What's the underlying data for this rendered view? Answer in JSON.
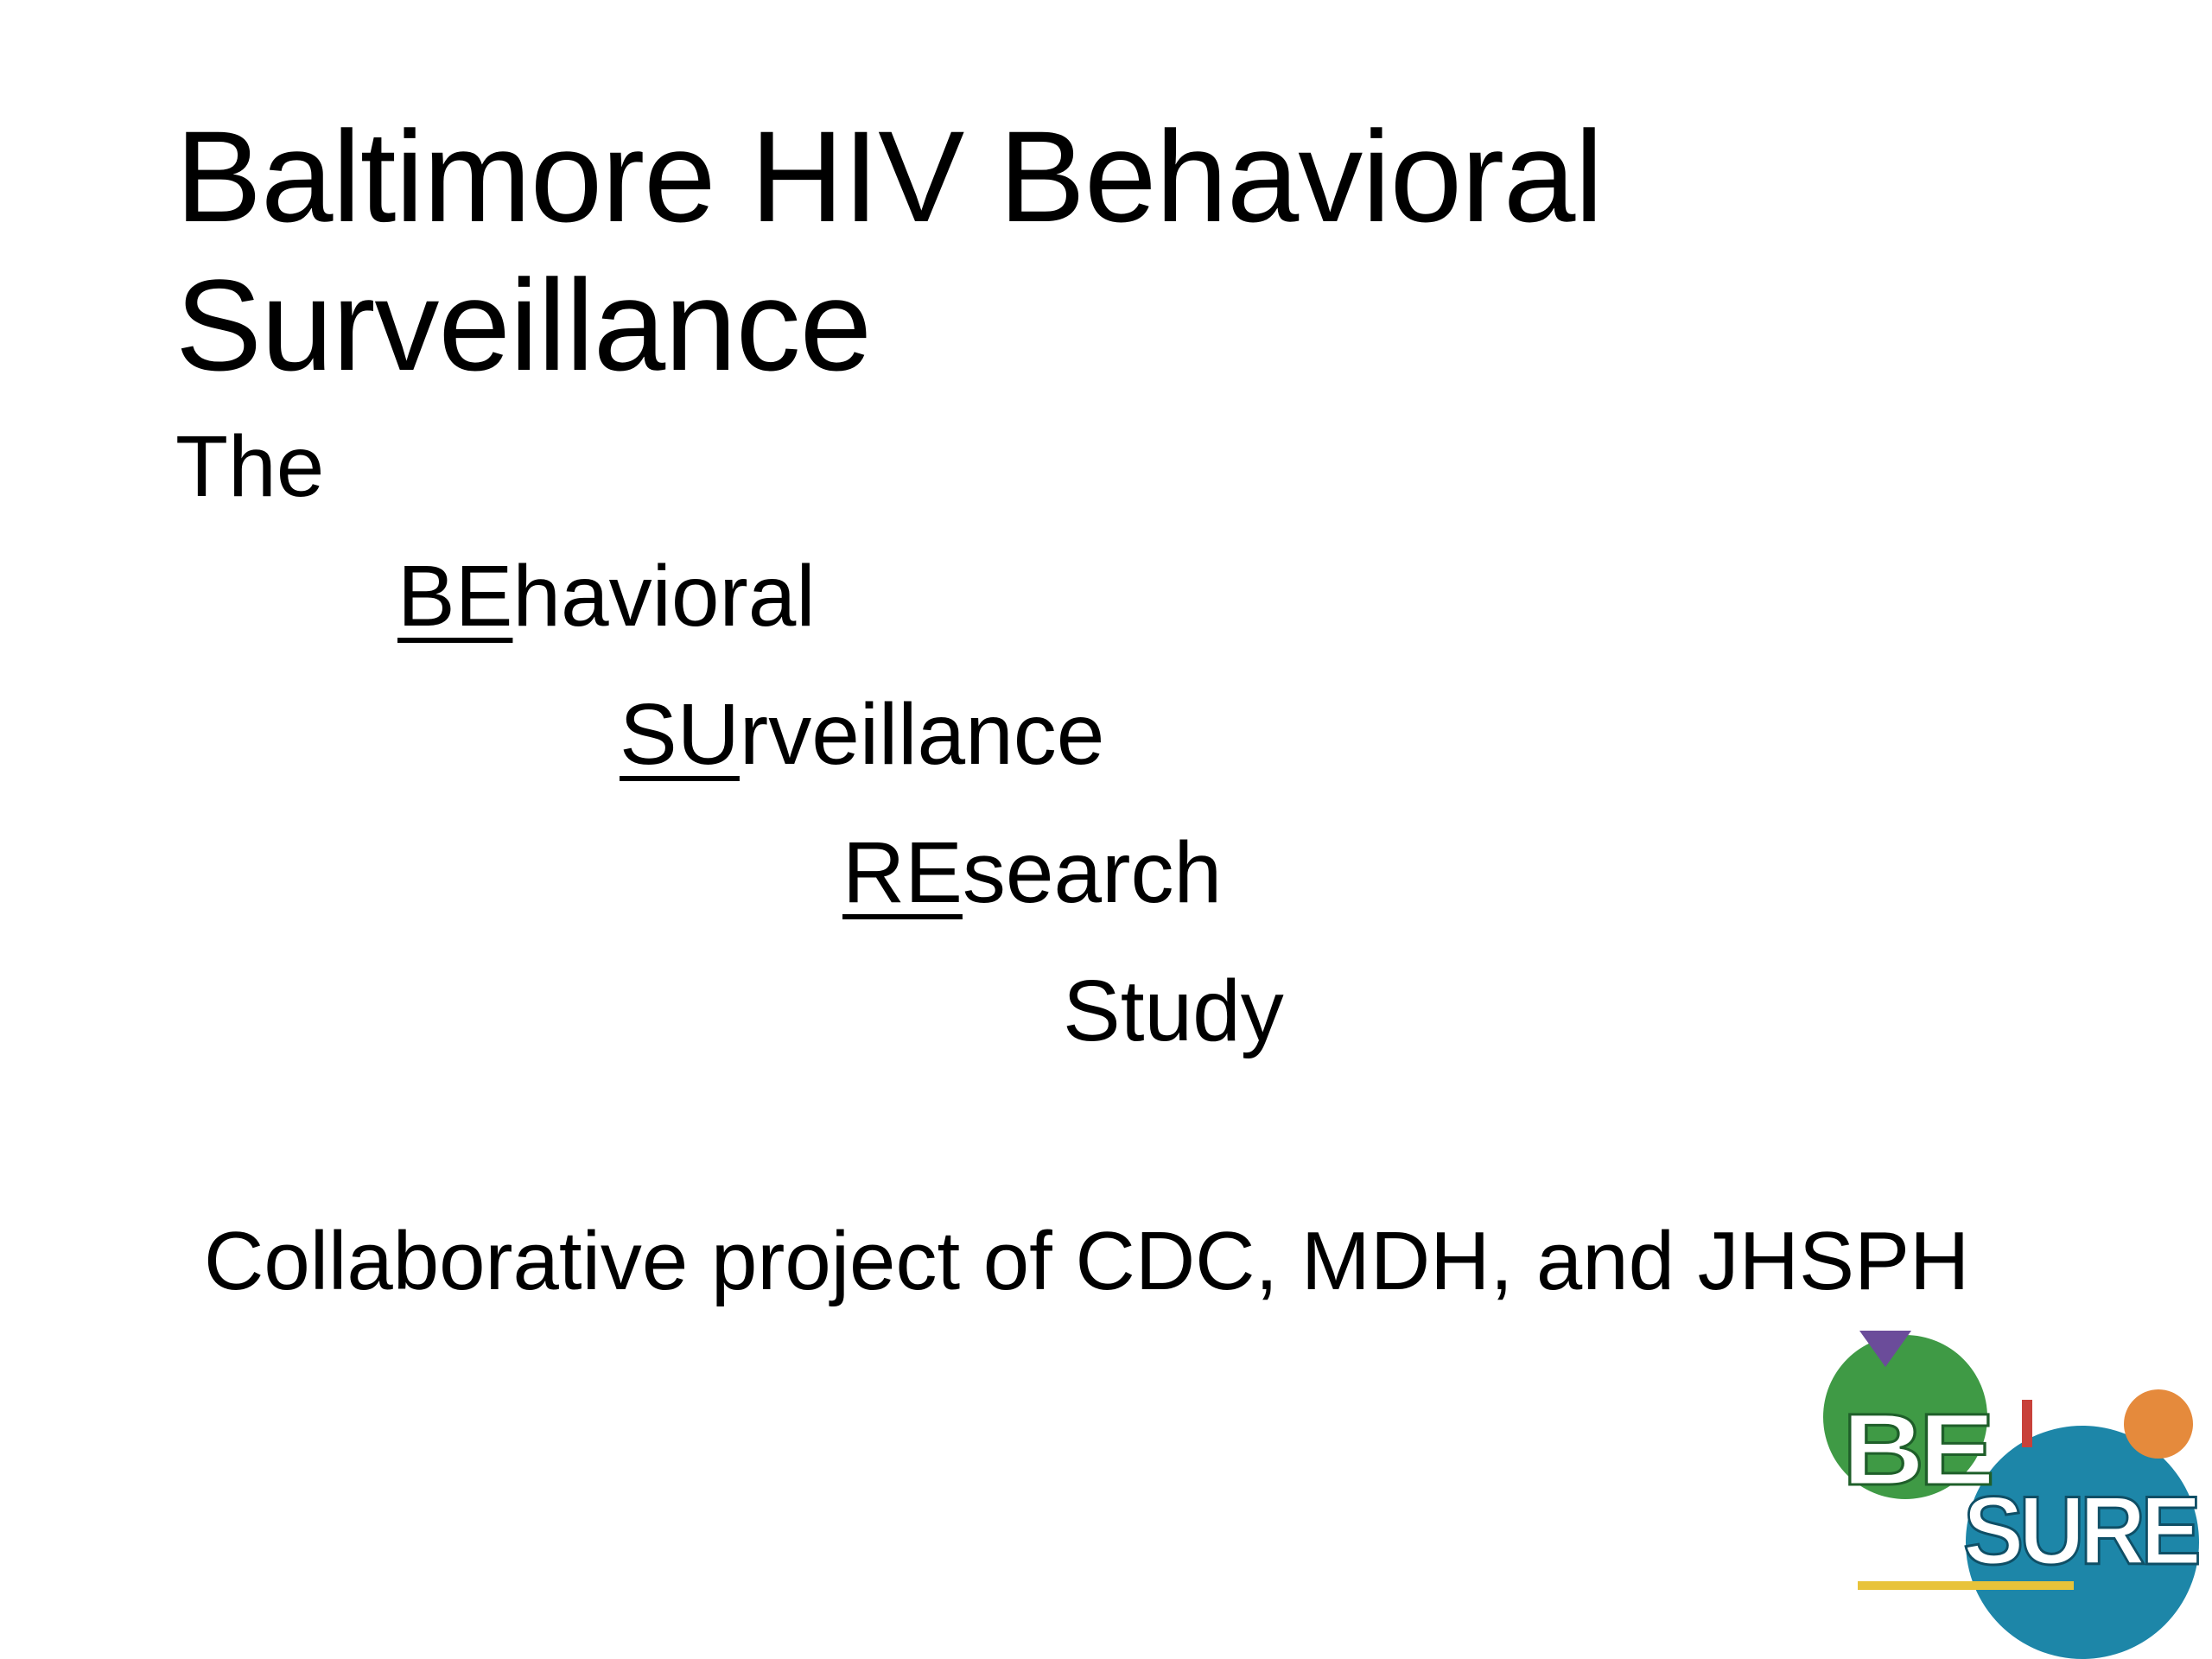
{
  "slide": {
    "title": "Baltimore HIV Behavioral Surveillance",
    "acronym": {
      "intro": "The",
      "lines": [
        {
          "underlined": "BE",
          "rest": "havioral"
        },
        {
          "underlined": "SU",
          "rest": "rveillance"
        },
        {
          "underlined": "RE",
          "rest": "search"
        },
        {
          "underlined": "",
          "rest": "Study"
        }
      ]
    },
    "collaboration": "Collaborative project of CDC, MDH, and JHSPH"
  },
  "logo": {
    "name": "besure-logo",
    "text_top": "BE",
    "text_bottom": "SURE",
    "colors": {
      "green": "#3f9a45",
      "blue": "#1d86a8",
      "purple": "#6b4c9a",
      "orange": "#e58a3c",
      "red": "#c8413a",
      "yellow": "#e8c33a"
    }
  }
}
